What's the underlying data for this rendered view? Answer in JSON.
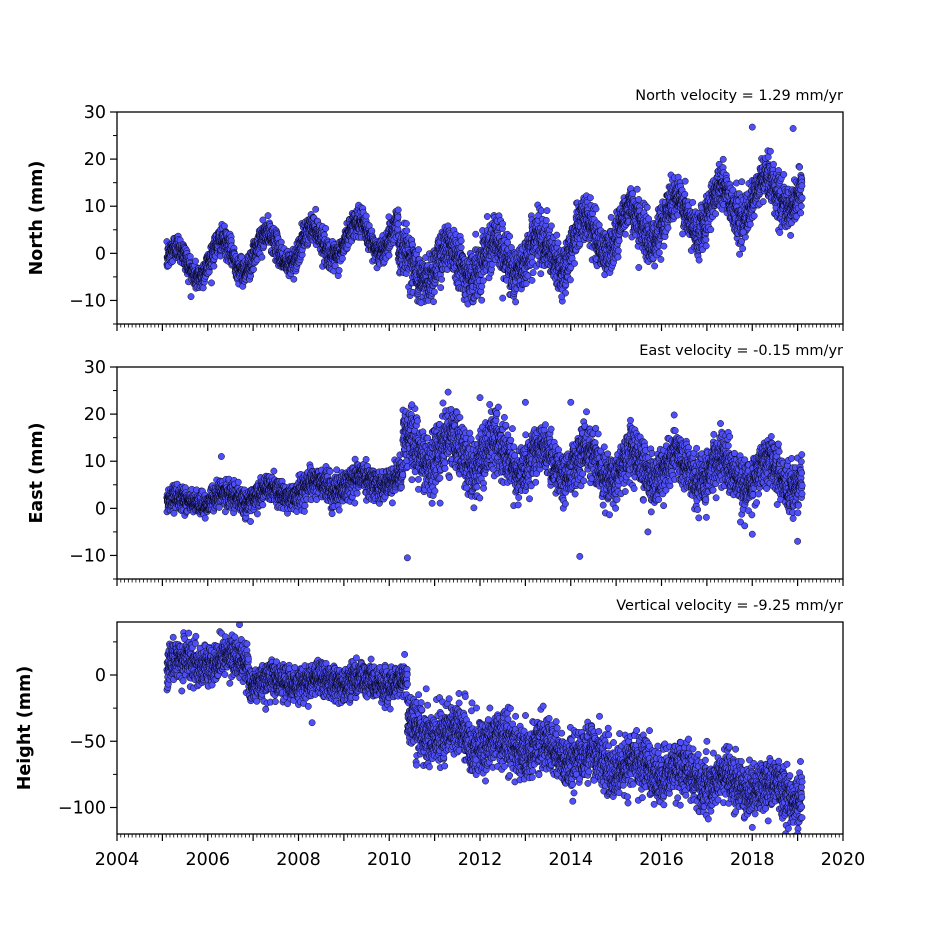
{
  "chart_data": [
    {
      "type": "scatter",
      "ylabel": "North (mm)",
      "annotation": "North velocity = 1.29 mm/yr",
      "xlim": [
        2004,
        2020
      ],
      "ylim": [
        -15,
        30
      ],
      "yticks": [
        -10,
        0,
        10,
        20,
        30
      ],
      "ytick_labels": [
        "−10",
        "0",
        "10",
        "20",
        "30"
      ],
      "x_tick_labels_visible": false,
      "series": [
        {
          "x": "2005.1 – 2019.1 (daily)",
          "y": "North displacement (mm)"
        }
      ],
      "segments": [
        {
          "x0": 2005.1,
          "x1": 2010.2,
          "y0": -2.5,
          "y1": 4.5,
          "amp": 3.6,
          "noise": 1.4
        },
        {
          "x0": 2010.2,
          "x1": 2014.0,
          "y0": -3.0,
          "y1": 0.5,
          "amp": 3.6,
          "noise": 2.6
        },
        {
          "x0": 2014.0,
          "x1": 2019.1,
          "y0": 2.5,
          "y1": 14.0,
          "amp": 4.2,
          "noise": 2.3
        }
      ],
      "phase": 0.05,
      "outliers": [
        [
          2010.7,
          -10.5
        ],
        [
          2018.0,
          26.8
        ],
        [
          2018.9,
          26.5
        ],
        [
          2012.5,
          -9.5
        ],
        [
          2013.8,
          -9.2
        ],
        [
          2015.5,
          -3.0
        ],
        [
          2017.8,
          4.5
        ]
      ],
      "point_color": "#4f4ffa",
      "edge_color": "#000000"
    },
    {
      "type": "scatter",
      "ylabel": "East (mm)",
      "annotation": "East velocity = -0.15 mm/yr",
      "xlim": [
        2004,
        2020
      ],
      "ylim": [
        -15,
        30
      ],
      "yticks": [
        -10,
        0,
        10,
        20,
        30
      ],
      "ytick_labels": [
        "−10",
        "0",
        "10",
        "20",
        "30"
      ],
      "x_tick_labels_visible": false,
      "series": [
        {
          "x": "2005.1 – 2019.1 (daily)",
          "y": "East displacement (mm)"
        }
      ],
      "segments": [
        {
          "x0": 2005.1,
          "x1": 2007.9,
          "y0": 1.0,
          "y1": 3.5,
          "amp": 1.2,
          "noise": 1.3
        },
        {
          "x0": 2007.9,
          "x1": 2010.3,
          "y0": 4.0,
          "y1": 6.5,
          "amp": 1.3,
          "noise": 1.5
        },
        {
          "x0": 2010.3,
          "x1": 2012.5,
          "y0": 13.0,
          "y1": 11.0,
          "amp": 3.0,
          "noise": 3.2
        },
        {
          "x0": 2012.5,
          "x1": 2019.1,
          "y0": 10.5,
          "y1": 7.0,
          "amp": 3.0,
          "noise": 2.6
        }
      ],
      "phase": 0.1,
      "outliers": [
        [
          2010.4,
          -10.5
        ],
        [
          2014.2,
          -10.2
        ],
        [
          2006.3,
          11.0
        ],
        [
          2010.5,
          22.0
        ],
        [
          2012.0,
          23.5
        ],
        [
          2013.0,
          22.5
        ],
        [
          2014.0,
          22.5
        ],
        [
          2017.3,
          18.0
        ],
        [
          2019.0,
          -7.0
        ],
        [
          2018.0,
          -5.5
        ],
        [
          2015.7,
          -5.0
        ]
      ],
      "point_color": "#4f4ffa",
      "edge_color": "#000000"
    },
    {
      "type": "scatter",
      "ylabel": "Height (mm)",
      "annotation": "Vertical velocity = -9.25 mm/yr",
      "xlim": [
        2004,
        2020
      ],
      "ylim": [
        -120,
        40
      ],
      "yticks": [
        -100,
        -50,
        0
      ],
      "ytick_labels": [
        "−100",
        "−50",
        "0"
      ],
      "xticks": [
        2004,
        2006,
        2008,
        2010,
        2012,
        2014,
        2016,
        2018,
        2020
      ],
      "xtick_labels": [
        "2004",
        "2006",
        "2008",
        "2010",
        "2012",
        "2014",
        "2016",
        "2018",
        "2020"
      ],
      "series": [
        {
          "x": "2005.1 – 2019.1 (daily)",
          "y": "Height displacement (mm)"
        }
      ],
      "segments": [
        {
          "x0": 2005.1,
          "x1": 2006.9,
          "y0": 8.0,
          "y1": 12.0,
          "amp": 4.0,
          "noise": 7.0
        },
        {
          "x0": 2006.9,
          "x1": 2010.4,
          "y0": -5.0,
          "y1": -5.0,
          "amp": 3.0,
          "noise": 6.5
        },
        {
          "x0": 2010.4,
          "x1": 2019.1,
          "y0": -40.0,
          "y1": -90.0,
          "amp": 6.0,
          "noise": 9.5
        }
      ],
      "phase": 0.2,
      "outliers": [
        [
          2006.7,
          38.0
        ],
        [
          2008.3,
          -36.0
        ],
        [
          2018.0,
          -115.0
        ],
        [
          2019.0,
          -120.0
        ],
        [
          2009.6,
          12.0
        ],
        [
          2010.6,
          -68.0
        ],
        [
          2017.0,
          -50.0
        ]
      ],
      "point_color": "#4f4ffa",
      "edge_color": "#000000"
    }
  ]
}
